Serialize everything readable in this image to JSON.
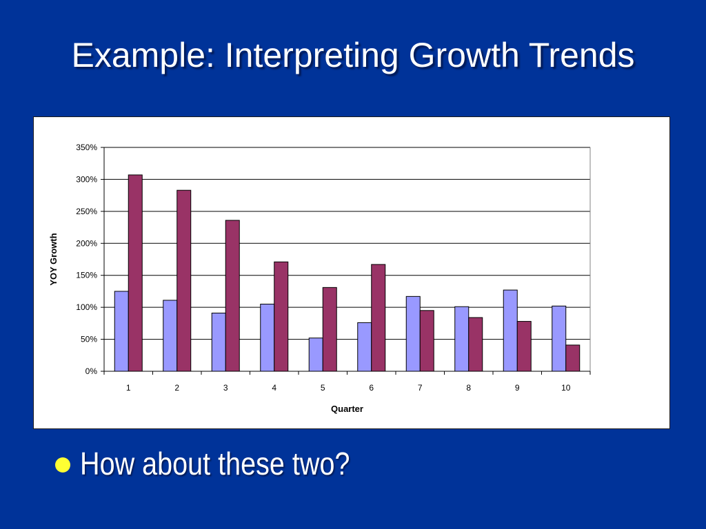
{
  "slide": {
    "title": "Example: Interpreting Growth Trends",
    "bullet_text": "How about these two?"
  },
  "colors": {
    "background": "#003399",
    "bullet": "#ffff33",
    "series_1": "#9999ff",
    "series_2": "#993366"
  },
  "chart_data": {
    "type": "bar",
    "categories": [
      "1",
      "2",
      "3",
      "4",
      "5",
      "6",
      "7",
      "8",
      "9",
      "10"
    ],
    "series": [
      {
        "values": [
          125,
          111,
          91,
          105,
          52,
          76,
          117,
          101,
          127,
          102
        ]
      },
      {
        "values": [
          307,
          283,
          236,
          171,
          131,
          167,
          95,
          84,
          78,
          41
        ]
      }
    ],
    "xlabel": "Quarter",
    "ylabel": "YOY Growth",
    "ylim": [
      0,
      350
    ],
    "yticks": [
      0,
      50,
      100,
      150,
      200,
      250,
      300,
      350
    ],
    "ytick_labels": [
      "0%",
      "50%",
      "100%",
      "150%",
      "200%",
      "250%",
      "300%",
      "350%"
    ],
    "grid": true,
    "legend": "none"
  }
}
